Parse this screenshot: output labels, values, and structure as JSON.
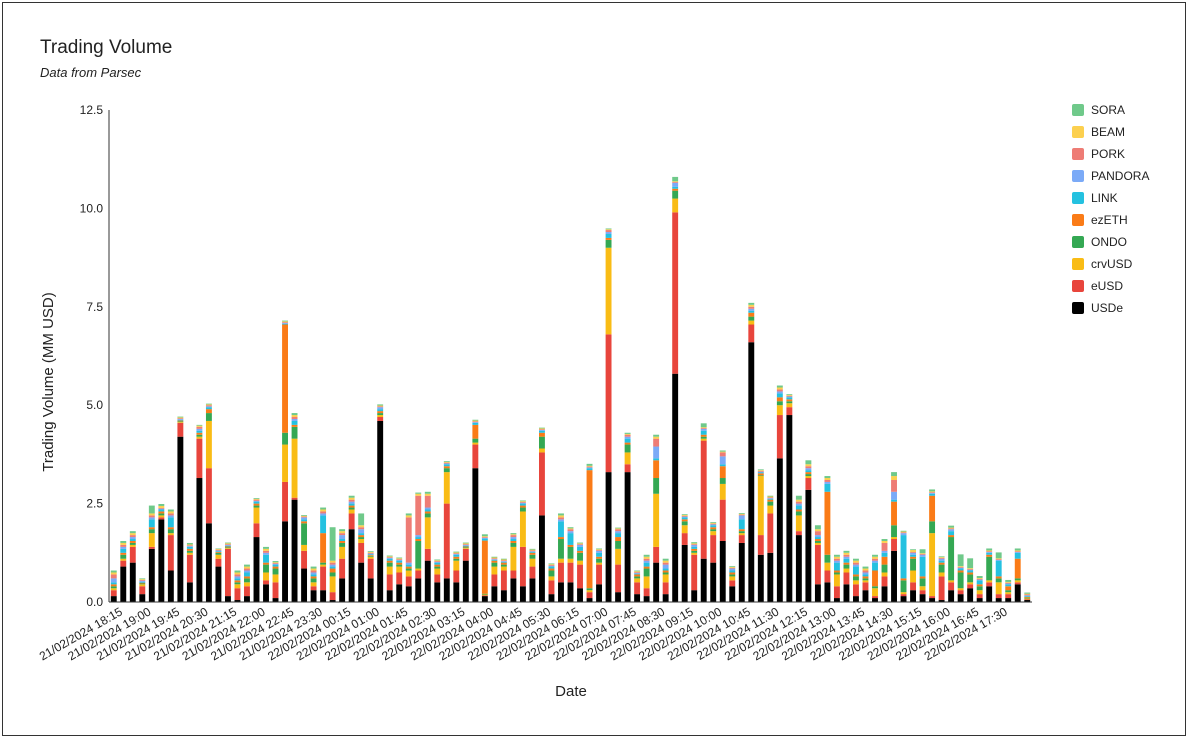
{
  "chart_data": {
    "type": "bar",
    "stacked": true,
    "title": "Trading Volume",
    "subtitle": "Data from Parsec",
    "xlabel": "Date",
    "ylabel": "Trading Volume (MM USD)",
    "ylim": [
      0,
      12.5
    ],
    "yticks": [
      "0.0",
      "2.5",
      "5.0",
      "7.5",
      "10.0",
      "12.5"
    ],
    "grid": false,
    "legend_position": "right",
    "x_tick_labels": [
      "21/02/2024 18:15",
      "21/02/2024 19:00",
      "21/02/2024 19:45",
      "21/02/2024 20:30",
      "21/02/2024 21:15",
      "21/02/2024 22:00",
      "21/02/2024 22:45",
      "21/02/2024 23:30",
      "22/02/2024 00:15",
      "22/02/2024 01:00",
      "22/02/2024 01:45",
      "22/02/2024 02:30",
      "22/02/2024 03:15",
      "22/02/2024 04:00",
      "22/02/2024 04:45",
      "22/02/2024 05:30",
      "22/02/2024 06:15",
      "22/02/2024 07:00",
      "22/02/2024 07:45",
      "22/02/2024 08:30",
      "22/02/2024 09:15",
      "22/02/2024 10:00",
      "22/02/2024 10:45",
      "22/02/2024 11:30",
      "22/02/2024 12:15",
      "22/02/2024 13:00",
      "22/02/2024 13:45",
      "22/02/2024 14:30",
      "22/02/2024 15:15",
      "22/02/2024 16:00",
      "22/02/2024 16:45",
      "22/02/2024 17:30"
    ],
    "series_order": [
      "USDe",
      "eUSD",
      "crvUSD",
      "ONDO",
      "ezETH",
      "LINK",
      "PANDORA",
      "PORK",
      "BEAM",
      "SORA"
    ],
    "legend_order": [
      "SORA",
      "BEAM",
      "PORK",
      "PANDORA",
      "LINK",
      "ezETH",
      "ONDO",
      "crvUSD",
      "eUSD",
      "USDe"
    ],
    "colors": {
      "USDe": "#000000",
      "eUSD": "#e8453c",
      "crvUSD": "#f9bc15",
      "ONDO": "#34a853",
      "ezETH": "#fa7b17",
      "LINK": "#24c1e0",
      "PANDORA": "#7baaf7",
      "PORK": "#ee7c75",
      "BEAM": "#fcd04f",
      "SORA": "#6fc98a"
    },
    "bars": [
      [
        0.15,
        0.15,
        0.05,
        0.05,
        0.05,
        0.05,
        0.1,
        0.1,
        0.05,
        0.05
      ],
      [
        0.9,
        0.15,
        0.05,
        0.1,
        0.05,
        0.1,
        0.05,
        0.05,
        0.05,
        0.05
      ],
      [
        1.0,
        0.4,
        0.05,
        0.05,
        0.05,
        0.05,
        0.05,
        0.05,
        0.05,
        0.05
      ],
      [
        0.2,
        0.2,
        0.05,
        0.02,
        0.02,
        0.02,
        0.03,
        0.02,
        0.02,
        0.02
      ],
      [
        1.35,
        0.05,
        0.35,
        0.1,
        0.05,
        0.2,
        0.05,
        0.05,
        0.05,
        0.2
      ],
      [
        2.1,
        0.05,
        0.05,
        0.05,
        0.05,
        0.05,
        0.02,
        0.02,
        0.05,
        0.05
      ],
      [
        0.8,
        0.9,
        0.05,
        0.1,
        0.05,
        0.25,
        0.05,
        0.05,
        0.05,
        0.05
      ],
      [
        4.2,
        0.35,
        0.02,
        0.02,
        0.02,
        0.02,
        0.02,
        0.02,
        0.02,
        0.02
      ],
      [
        0.5,
        0.7,
        0.05,
        0.05,
        0.05,
        0.05,
        0.02,
        0.02,
        0.02,
        0.04
      ],
      [
        3.15,
        1.0,
        0.05,
        0.05,
        0.05,
        0.05,
        0.05,
        0.05,
        0.03,
        0.02
      ],
      [
        2.0,
        1.4,
        1.2,
        0.2,
        0.1,
        0.05,
        0.02,
        0.03,
        0.02,
        0.02
      ],
      [
        0.9,
        0.2,
        0.1,
        0.05,
        0.02,
        0.02,
        0.02,
        0.02,
        0.02,
        0.01
      ],
      [
        0.15,
        1.2,
        0.02,
        0.02,
        0.02,
        0.02,
        0.02,
        0.02,
        0.02,
        0.02
      ],
      [
        0.05,
        0.3,
        0.1,
        0.05,
        0.05,
        0.05,
        0.05,
        0.05,
        0.05,
        0.05
      ],
      [
        0.15,
        0.25,
        0.1,
        0.1,
        0.05,
        0.1,
        0.05,
        0.05,
        0.05,
        0.05
      ],
      [
        1.65,
        0.35,
        0.4,
        0.05,
        0.05,
        0.05,
        0.02,
        0.03,
        0.02,
        0.02
      ],
      [
        0.45,
        0.1,
        0.2,
        0.2,
        0.05,
        0.2,
        0.05,
        0.05,
        0.05,
        0.05
      ],
      [
        0.1,
        0.4,
        0.2,
        0.15,
        0.05,
        0.05,
        0.02,
        0.02,
        0.02,
        0.03
      ],
      [
        2.05,
        1.0,
        0.95,
        0.3,
        2.75,
        0.02,
        0.02,
        0.02,
        0.02,
        0.02
      ],
      [
        2.6,
        0.05,
        1.5,
        0.3,
        0.05,
        0.1,
        0.05,
        0.05,
        0.05,
        0.05
      ],
      [
        0.85,
        0.45,
        0.15,
        0.55,
        0.05,
        0.05,
        0.05,
        0.02,
        0.02,
        0.02
      ],
      [
        0.3,
        0.1,
        0.1,
        0.1,
        0.05,
        0.05,
        0.05,
        0.05,
        0.05,
        0.05
      ],
      [
        0.3,
        0.6,
        0.05,
        0.05,
        0.75,
        0.45,
        0.05,
        0.05,
        0.05,
        0.05
      ],
      [
        0.05,
        0.2,
        0.4,
        0.1,
        0.1,
        0.05,
        0.05,
        0.05,
        0.05,
        0.85
      ],
      [
        0.6,
        0.5,
        0.3,
        0.1,
        0.05,
        0.05,
        0.1,
        0.05,
        0.05,
        0.05
      ],
      [
        1.85,
        0.4,
        0.1,
        0.05,
        0.05,
        0.05,
        0.05,
        0.05,
        0.05,
        0.05
      ],
      [
        1.0,
        0.5,
        0.1,
        0.05,
        0.05,
        0.05,
        0.1,
        0.05,
        0.05,
        0.3
      ],
      [
        0.6,
        0.5,
        0.05,
        0.02,
        0.02,
        0.02,
        0.02,
        0.02,
        0.02,
        0.02
      ],
      [
        4.6,
        0.1,
        0.05,
        0.05,
        0.05,
        0.05,
        0.05,
        0.02,
        0.02,
        0.03
      ],
      [
        0.3,
        0.4,
        0.2,
        0.1,
        0.05,
        0.05,
        0.02,
        0.02,
        0.02,
        0.02
      ],
      [
        0.45,
        0.3,
        0.15,
        0.05,
        0.05,
        0.05,
        0.02,
        0.02,
        0.02,
        0.02
      ],
      [
        0.4,
        0.25,
        0.15,
        0.05,
        0.05,
        0.05,
        0.05,
        1.15,
        0.05,
        0.05
      ],
      [
        0.6,
        0.2,
        0.05,
        0.7,
        0.05,
        0.05,
        0.05,
        1.0,
        0.05,
        0.03
      ],
      [
        1.05,
        0.3,
        0.8,
        0.1,
        0.05,
        0.05,
        0.05,
        0.3,
        0.05,
        0.05
      ],
      [
        0.5,
        0.2,
        0.15,
        0.05,
        0.05,
        0.05,
        0.02,
        0.02,
        0.02,
        0.02
      ],
      [
        0.6,
        1.9,
        0.8,
        0.1,
        0.05,
        0.05,
        0.02,
        0.02,
        0.02,
        0.02
      ],
      [
        0.5,
        0.3,
        0.25,
        0.05,
        0.05,
        0.05,
        0.02,
        0.02,
        0.02,
        0.02
      ],
      [
        1.05,
        0.3,
        0.02,
        0.02,
        0.02,
        0.02,
        0.02,
        0.02,
        0.02,
        0.02
      ],
      [
        3.4,
        0.6,
        0.05,
        0.1,
        0.35,
        0.05,
        0.02,
        0.02,
        0.02,
        0.02
      ],
      [
        0.15,
        0.02,
        0.02,
        0.02,
        1.35,
        0.05,
        0.02,
        0.02,
        0.02,
        0.05
      ],
      [
        0.4,
        0.3,
        0.2,
        0.1,
        0.05,
        0.02,
        0.02,
        0.02,
        0.02,
        0.02
      ],
      [
        0.3,
        0.5,
        0.1,
        0.05,
        0.05,
        0.02,
        0.02,
        0.02,
        0.02,
        0.02
      ],
      [
        0.6,
        0.2,
        0.6,
        0.1,
        0.05,
        0.05,
        0.05,
        0.05,
        0.02,
        0.03
      ],
      [
        0.4,
        1.0,
        0.9,
        0.1,
        0.05,
        0.05,
        0.02,
        0.02,
        0.02,
        0.02
      ],
      [
        0.6,
        0.3,
        0.2,
        0.1,
        0.05,
        0.02,
        0.02,
        0.02,
        0.02,
        0.02
      ],
      [
        2.2,
        1.6,
        0.1,
        0.3,
        0.1,
        0.05,
        0.02,
        0.02,
        0.02,
        0.02
      ],
      [
        0.2,
        0.35,
        0.1,
        0.15,
        0.05,
        0.05,
        0.02,
        0.02,
        0.02,
        0.02
      ],
      [
        0.5,
        0.5,
        0.1,
        0.5,
        0.05,
        0.4,
        0.05,
        0.05,
        0.05,
        0.05
      ],
      [
        0.5,
        0.5,
        0.1,
        0.3,
        0.05,
        0.3,
        0.05,
        0.05,
        0.02,
        0.03
      ],
      [
        0.35,
        0.6,
        0.1,
        0.2,
        0.05,
        0.1,
        0.05,
        0.02,
        0.02,
        0.02
      ],
      [
        0.1,
        0.15,
        0.05,
        0.05,
        3.0,
        0.05,
        0.02,
        0.02,
        0.02,
        0.05
      ],
      [
        0.45,
        0.5,
        0.05,
        0.1,
        0.05,
        0.1,
        0.05,
        0.02,
        0.02,
        0.02
      ],
      [
        3.3,
        3.5,
        2.2,
        0.2,
        0.05,
        0.1,
        0.05,
        0.05,
        0.02,
        0.02
      ],
      [
        0.25,
        0.7,
        0.4,
        0.2,
        0.1,
        0.1,
        0.05,
        0.05,
        0.02,
        0.02
      ],
      [
        3.3,
        0.2,
        0.3,
        0.2,
        0.05,
        0.1,
        0.05,
        0.05,
        0.02,
        0.03
      ],
      [
        0.2,
        0.3,
        0.1,
        0.05,
        0.05,
        0.02,
        0.02,
        0.02,
        0.02,
        0.02
      ],
      [
        0.15,
        0.2,
        0.3,
        0.2,
        0.05,
        0.1,
        0.05,
        0.05,
        0.05,
        0.05
      ],
      [
        1.0,
        0.4,
        1.35,
        0.4,
        0.45,
        0.05,
        0.3,
        0.2,
        0.05,
        0.05
      ],
      [
        0.2,
        0.3,
        0.2,
        0.05,
        0.05,
        0.05,
        0.1,
        0.05,
        0.05,
        0.05
      ],
      [
        5.8,
        4.1,
        0.35,
        0.2,
        0.05,
        0.05,
        0.1,
        0.02,
        0.02,
        0.11
      ],
      [
        1.45,
        0.3,
        0.2,
        0.1,
        0.05,
        0.05,
        0.02,
        0.02,
        0.02,
        0.02
      ],
      [
        0.3,
        0.9,
        0.05,
        0.05,
        0.05,
        0.05,
        0.05,
        0.02,
        0.02,
        0.03
      ],
      [
        1.1,
        3.0,
        0.05,
        0.05,
        0.05,
        0.1,
        0.05,
        0.02,
        0.02,
        0.1
      ],
      [
        1.0,
        0.7,
        0.1,
        0.05,
        0.05,
        0.05,
        0.02,
        0.02,
        0.02,
        0.02
      ],
      [
        1.55,
        1.05,
        0.4,
        0.15,
        0.3,
        0.05,
        0.2,
        0.1,
        0.02,
        0.03
      ],
      [
        0.4,
        0.15,
        0.1,
        0.05,
        0.05,
        0.05,
        0.05,
        0.02,
        0.02,
        0.02
      ],
      [
        1.5,
        0.2,
        0.05,
        0.05,
        0.05,
        0.25,
        0.1,
        0.02,
        0.02,
        0.02
      ],
      [
        6.6,
        0.45,
        0.1,
        0.1,
        0.1,
        0.05,
        0.05,
        0.05,
        0.05,
        0.05
      ],
      [
        1.2,
        0.5,
        1.5,
        0.02,
        0.05,
        0.02,
        0.02,
        0.02,
        0.02,
        0.02
      ],
      [
        1.25,
        1.0,
        0.2,
        0.1,
        0.05,
        0.02,
        0.02,
        0.02,
        0.02,
        0.02
      ],
      [
        3.65,
        1.1,
        0.25,
        0.1,
        0.1,
        0.1,
        0.05,
        0.05,
        0.05,
        0.05
      ],
      [
        4.75,
        0.2,
        0.1,
        0.05,
        0.05,
        0.05,
        0.02,
        0.02,
        0.02,
        0.02
      ],
      [
        1.7,
        0.1,
        0.4,
        0.1,
        0.05,
        0.1,
        0.05,
        0.05,
        0.05,
        0.1
      ],
      [
        2.85,
        0.3,
        0.05,
        0.05,
        0.05,
        0.05,
        0.05,
        0.05,
        0.05,
        0.1
      ],
      [
        0.45,
        1.0,
        0.05,
        0.05,
        0.05,
        0.05,
        0.05,
        0.1,
        0.05,
        0.1
      ],
      [
        0.5,
        0.3,
        0.2,
        0.2,
        1.6,
        0.2,
        0.05,
        0.05,
        0.05,
        0.05
      ],
      [
        0.1,
        0.3,
        0.3,
        0.05,
        0.05,
        0.2,
        0.05,
        0.05,
        0.05,
        0.05
      ],
      [
        0.45,
        0.3,
        0.1,
        0.1,
        0.05,
        0.1,
        0.05,
        0.05,
        0.05,
        0.05
      ],
      [
        0.15,
        0.3,
        0.1,
        0.1,
        0.05,
        0.2,
        0.05,
        0.05,
        0.05,
        0.05
      ],
      [
        0.3,
        0.2,
        0.05,
        0.05,
        0.05,
        0.05,
        0.05,
        0.05,
        0.05,
        0.05
      ],
      [
        0.1,
        0.05,
        0.2,
        0.05,
        0.4,
        0.2,
        0.05,
        0.05,
        0.05,
        0.05
      ],
      [
        0.4,
        0.25,
        0.1,
        0.2,
        0.2,
        0.1,
        0.05,
        0.2,
        0.05,
        0.05
      ],
      [
        1.3,
        0.3,
        0.05,
        0.3,
        0.6,
        0.05,
        0.2,
        0.3,
        0.1,
        0.1
      ],
      [
        0.15,
        0.05,
        0.05,
        0.3,
        0.05,
        1.1,
        0.05,
        0.02,
        0.02,
        0.02
      ],
      [
        0.3,
        0.2,
        0.3,
        0.3,
        0.05,
        0.05,
        0.05,
        0.02,
        0.05,
        0.02
      ],
      [
        0.2,
        0.1,
        0.1,
        0.2,
        0.05,
        0.5,
        0.05,
        0.02,
        0.02,
        0.1
      ],
      [
        0.1,
        0.05,
        1.6,
        0.3,
        0.65,
        0.05,
        0.02,
        0.02,
        0.02,
        0.05
      ],
      [
        0.05,
        0.6,
        0.1,
        0.2,
        0.05,
        0.05,
        0.05,
        0.02,
        0.02,
        0.02
      ],
      [
        0.3,
        0.2,
        0.05,
        1.1,
        0.05,
        0.1,
        0.05,
        0.02,
        0.02,
        0.05
      ],
      [
        0.2,
        0.1,
        0.05,
        0.4,
        0.05,
        0.05,
        0.02,
        0.02,
        0.02,
        0.3
      ],
      [
        0.35,
        0.1,
        0.05,
        0.2,
        0.05,
        0.05,
        0.02,
        0.02,
        0.02,
        0.25
      ],
      [
        0.1,
        0.1,
        0.1,
        0.1,
        0.05,
        0.1,
        0.02,
        0.02,
        0.02,
        0.05
      ],
      [
        0.4,
        0.1,
        0.05,
        0.6,
        0.05,
        0.05,
        0.02,
        0.02,
        0.02,
        0.05
      ],
      [
        0.1,
        0.1,
        0.3,
        0.1,
        0.05,
        0.4,
        0.02,
        0.02,
        0.02,
        0.15
      ],
      [
        0.1,
        0.1,
        0.05,
        0.05,
        0.1,
        0.05,
        0.02,
        0.02,
        0.02,
        0.05
      ],
      [
        0.45,
        0.05,
        0.05,
        0.05,
        0.5,
        0.15,
        0.02,
        0.02,
        0.02,
        0.05
      ],
      [
        0.05,
        0.02,
        0.02,
        0.02,
        0.02,
        0.02,
        0.02,
        0.02,
        0.02,
        0.03
      ]
    ]
  }
}
